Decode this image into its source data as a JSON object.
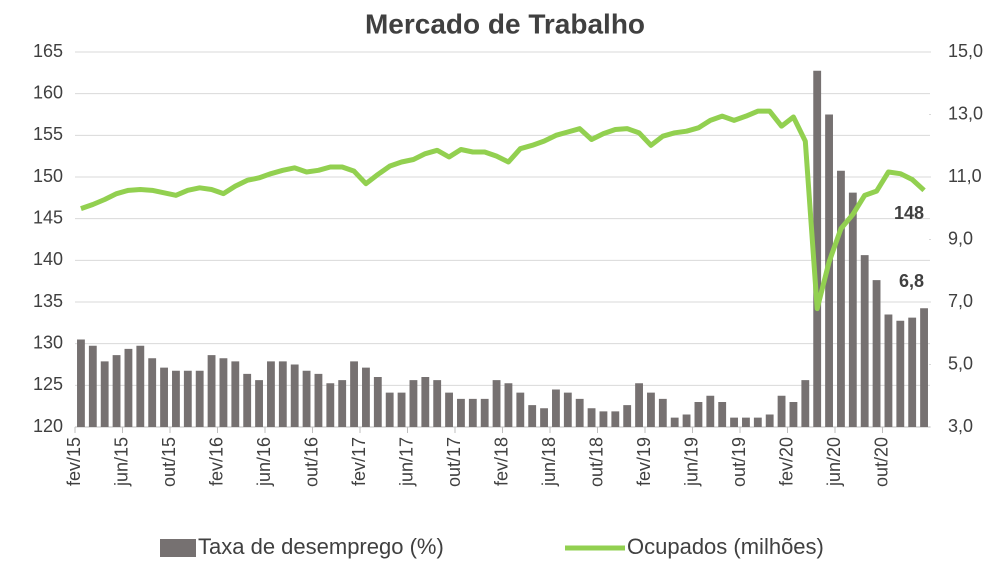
{
  "chart_data": {
    "type": "bar_line",
    "title": "Mercado de Trabalho",
    "categories": [
      "fev/15",
      null,
      null,
      null,
      "jun/15",
      null,
      null,
      null,
      "out/15",
      null,
      null,
      null,
      "fev/16",
      null,
      null,
      null,
      "jun/16",
      null,
      null,
      null,
      "out/16",
      null,
      null,
      null,
      "fev/17",
      null,
      null,
      null,
      "jun/17",
      null,
      null,
      null,
      "out/17",
      null,
      null,
      null,
      "fev/18",
      null,
      null,
      null,
      "jun/18",
      null,
      null,
      null,
      "out/18",
      null,
      null,
      null,
      "fev/19",
      null,
      null,
      null,
      "jun/19",
      null,
      null,
      null,
      "out/19",
      null,
      null,
      null,
      "fev/20",
      null,
      null,
      null,
      "jun/20",
      null,
      null,
      null,
      "out/20",
      null,
      null,
      null
    ],
    "series": [
      {
        "name": "Taxa de desemprego (%)",
        "type": "bar",
        "axis": "y2",
        "color": "#767171",
        "values": [
          5.8,
          5.6,
          5.1,
          5.3,
          5.5,
          5.6,
          5.2,
          4.9,
          4.8,
          4.8,
          4.8,
          5.3,
          5.2,
          5.1,
          4.7,
          4.5,
          5.1,
          5.1,
          5.0,
          4.8,
          4.7,
          4.4,
          4.5,
          5.1,
          4.9,
          4.6,
          4.1,
          4.1,
          4.5,
          4.6,
          4.5,
          4.1,
          3.9,
          3.9,
          3.9,
          4.5,
          4.4,
          4.1,
          3.7,
          3.6,
          4.2,
          4.1,
          3.9,
          3.6,
          3.5,
          3.5,
          3.7,
          4.4,
          4.1,
          3.9,
          3.3,
          3.4,
          3.8,
          4.0,
          3.8,
          3.3,
          3.3,
          3.3,
          3.4,
          4.0,
          3.8,
          4.5,
          14.4,
          13.0,
          11.2,
          10.5,
          8.5,
          7.7,
          6.6,
          6.4,
          6.5,
          6.8
        ],
        "value_labels": [
          null,
          null,
          null,
          null,
          null,
          null,
          null,
          null,
          null,
          null,
          null,
          null,
          null,
          null,
          null,
          null,
          null,
          null,
          null,
          null,
          null,
          null,
          null,
          null,
          null,
          null,
          null,
          null,
          null,
          null,
          null,
          null,
          null,
          null,
          null,
          null,
          null,
          null,
          null,
          null,
          null,
          null,
          null,
          null,
          null,
          null,
          null,
          null,
          null,
          null,
          null,
          null,
          null,
          null,
          null,
          null,
          null,
          null,
          null,
          null,
          null,
          null,
          null,
          null,
          null,
          null,
          null,
          null,
          null,
          null,
          null,
          "6,8"
        ]
      },
      {
        "name": "Ocupados (milhões)",
        "type": "line",
        "color": "#92d050",
        "values": [
          146.2,
          146.7,
          147.3,
          148.0,
          148.4,
          148.5,
          148.4,
          148.1,
          147.8,
          148.4,
          148.7,
          148.5,
          148.0,
          148.9,
          149.6,
          149.9,
          150.4,
          150.8,
          151.1,
          150.6,
          150.8,
          151.2,
          151.2,
          150.7,
          149.2,
          150.3,
          151.3,
          151.8,
          152.1,
          152.8,
          153.2,
          152.4,
          153.3,
          153.0,
          153.0,
          152.5,
          151.8,
          153.4,
          153.8,
          154.3,
          155.0,
          155.4,
          155.8,
          154.5,
          155.2,
          155.7,
          155.8,
          155.3,
          153.8,
          154.9,
          155.3,
          155.5,
          155.9,
          156.8,
          157.3,
          156.8,
          157.3,
          157.9,
          157.9,
          156.1,
          157.2,
          154.3,
          134.2,
          139.8,
          143.8,
          145.5,
          147.8,
          148.3,
          150.6,
          150.4,
          149.7,
          148.4
        ],
        "value_labels": [
          null,
          null,
          null,
          null,
          null,
          null,
          null,
          null,
          null,
          null,
          null,
          null,
          null,
          null,
          null,
          null,
          null,
          null,
          null,
          null,
          null,
          null,
          null,
          null,
          null,
          null,
          null,
          null,
          null,
          null,
          null,
          null,
          null,
          null,
          null,
          null,
          null,
          null,
          null,
          null,
          null,
          null,
          null,
          null,
          null,
          null,
          null,
          null,
          null,
          null,
          null,
          null,
          null,
          null,
          null,
          null,
          null,
          null,
          null,
          null,
          null,
          null,
          null,
          null,
          null,
          null,
          null,
          null,
          null,
          null,
          null,
          "148"
        ]
      }
    ],
    "ylim": [
      120,
      165
    ],
    "yticks": [
      120,
      125,
      130,
      135,
      140,
      145,
      150,
      155,
      160,
      165
    ],
    "y2lim": [
      3,
      15
    ],
    "y2ticks": [
      {
        "value": 3,
        "label": "3,0"
      },
      {
        "value": 5,
        "label": "5,0"
      },
      {
        "value": 7,
        "label": "7,0"
      },
      {
        "value": 9,
        "label": "9,0"
      },
      {
        "value": 11,
        "label": "11,0"
      },
      {
        "value": 13,
        "label": "13,0"
      },
      {
        "value": 15,
        "label": "15,0"
      }
    ],
    "grid": true,
    "legend": "bottom"
  }
}
